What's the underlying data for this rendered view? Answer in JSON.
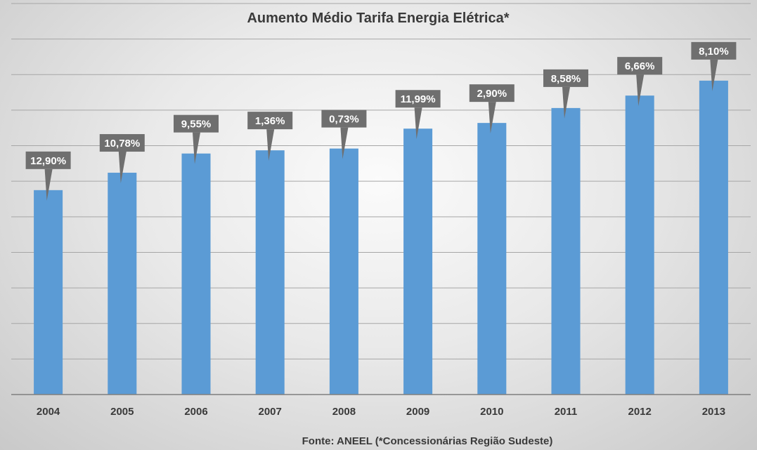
{
  "chart_data": {
    "type": "bar",
    "title": "Aumento Médio Tarifa Energia Elétrica*",
    "source_note": "Fonte: ANEEL (*Concessionárias Região Sudeste)",
    "categories": [
      "2004",
      "2005",
      "2006",
      "2007",
      "2008",
      "2009",
      "2010",
      "2011",
      "2012",
      "2013"
    ],
    "values": [
      57.5,
      62.4,
      67.8,
      68.7,
      69.2,
      74.8,
      76.4,
      80.6,
      84.1,
      88.3
    ],
    "data_labels": [
      "12,90%",
      "10,78%",
      "9,55%",
      "1,36%",
      "0,73%",
      "11,99%",
      "2,90%",
      "8,58%",
      "6,66%",
      "8,10%"
    ],
    "ylim": [
      0,
      110
    ],
    "ytick_step": 10,
    "y_axis_labels_shown": false,
    "grid": "horizontal",
    "legend": "none",
    "colors": {
      "bar": "#5b9bd5",
      "label_box": "#6f6f6f",
      "gridline": "#a6a6a6",
      "axis": "#7f7f7f",
      "text": "#3a3a3a",
      "label_text": "#ffffff"
    }
  }
}
